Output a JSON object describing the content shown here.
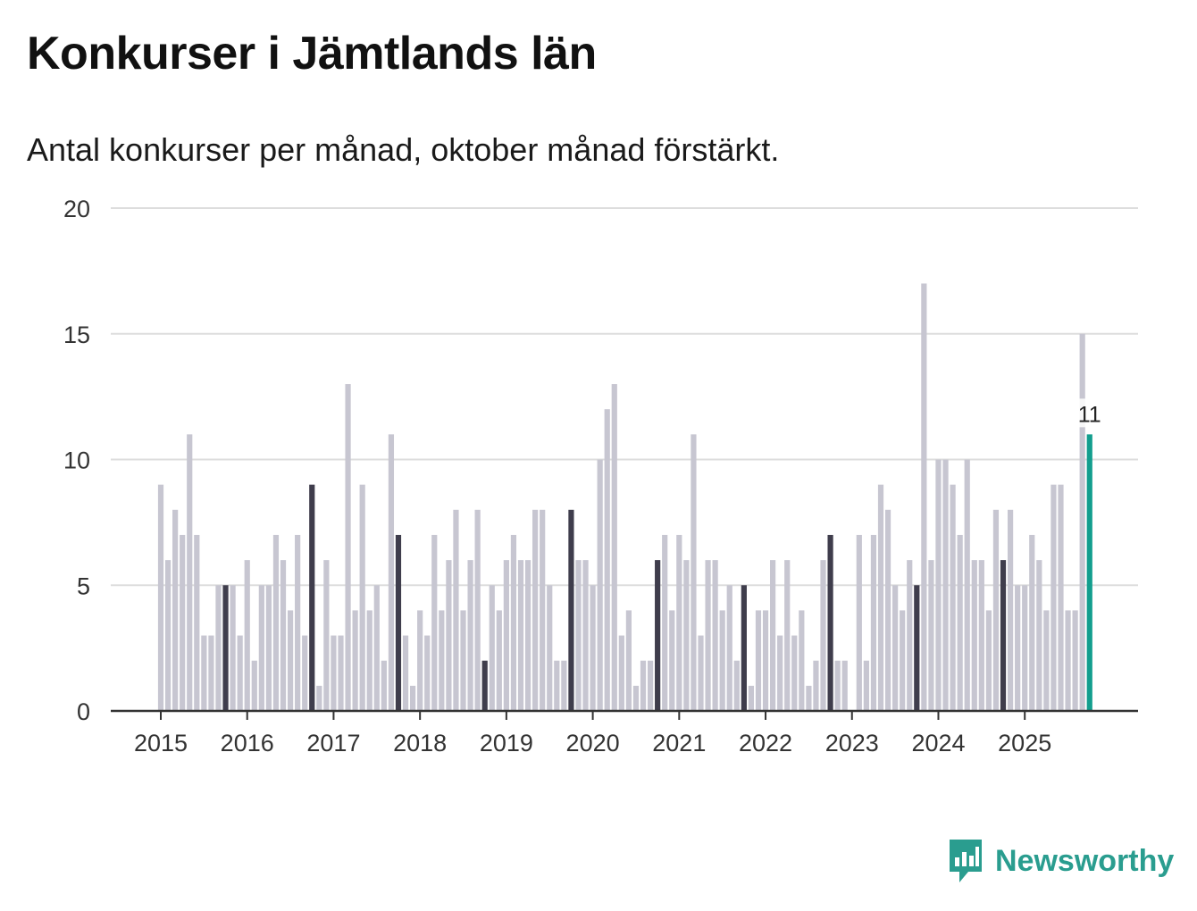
{
  "title": "Konkurser i Jämtlands län",
  "subtitle": "Antal konkurser per månad, oktober månad förstärkt.",
  "brand": "Newsworthy",
  "colors": {
    "bar": "#c7c6d1",
    "highlight": "#3f3d4c",
    "latest": "#139e8e",
    "grid": "#dddddd",
    "axis": "#333333",
    "brand": "#2a9d8f"
  },
  "chart_data": {
    "type": "bar",
    "title": "Konkurser i Jämtlands län",
    "xlabel": "",
    "ylabel": "",
    "ylim": [
      0,
      20
    ],
    "yticks": [
      0,
      5,
      10,
      15,
      20
    ],
    "year_labels": [
      "2015",
      "2016",
      "2017",
      "2018",
      "2019",
      "2020",
      "2021",
      "2022",
      "2023",
      "2024",
      "2025"
    ],
    "start": "2015-01",
    "highlight_month": 10,
    "latest_label": "11",
    "values": [
      9,
      6,
      8,
      7,
      11,
      7,
      3,
      3,
      5,
      5,
      5,
      3,
      6,
      2,
      5,
      5,
      7,
      6,
      4,
      7,
      3,
      9,
      1,
      6,
      3,
      3,
      13,
      4,
      9,
      4,
      5,
      2,
      11,
      7,
      3,
      1,
      4,
      3,
      7,
      4,
      6,
      8,
      4,
      6,
      8,
      2,
      5,
      4,
      6,
      7,
      6,
      6,
      8,
      8,
      5,
      2,
      2,
      8,
      6,
      6,
      5,
      10,
      12,
      13,
      3,
      4,
      1,
      2,
      2,
      6,
      7,
      4,
      7,
      6,
      11,
      3,
      6,
      6,
      4,
      5,
      2,
      5,
      1,
      4,
      4,
      6,
      3,
      6,
      3,
      4,
      1,
      2,
      6,
      7,
      2,
      2,
      0,
      7,
      2,
      7,
      9,
      8,
      5,
      4,
      6,
      5,
      17,
      6,
      10,
      10,
      9,
      7,
      10,
      6,
      6,
      4,
      8,
      6,
      8,
      5,
      5,
      7,
      6,
      4,
      9,
      9,
      4,
      4,
      15,
      11
    ]
  }
}
